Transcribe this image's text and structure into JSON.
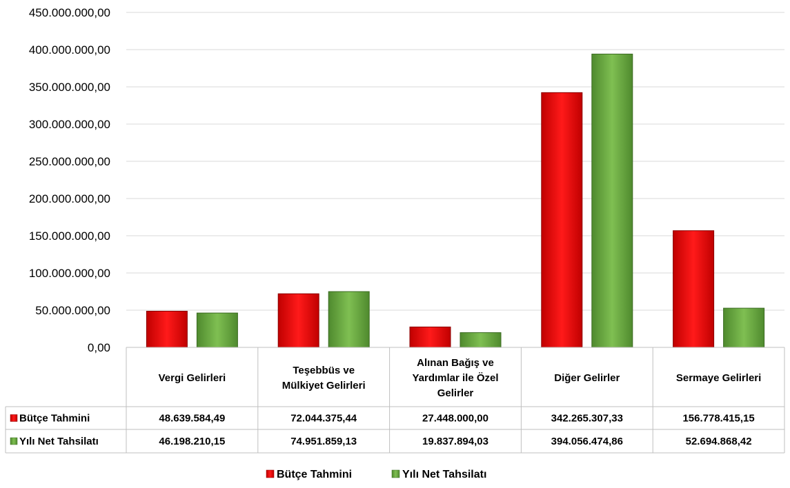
{
  "chart_data": {
    "type": "bar",
    "categories": [
      [
        "Vergi Gelirleri"
      ],
      [
        "Teşebbüs ve",
        "Mülkiyet Gelirleri"
      ],
      [
        "Alınan Bağış ve",
        "Yardımlar ile Özel",
        "Gelirler"
      ],
      [
        "Diğer Gelirler"
      ],
      [
        "Sermaye Gelirleri"
      ]
    ],
    "series": [
      {
        "name": "Bütçe Tahmini",
        "color": "#ff0000",
        "values": [
          48639584.49,
          72044375.44,
          27448000.0,
          342265307.33,
          156778415.15
        ],
        "labels": [
          "48.639.584,49",
          "72.044.375,44",
          "27.448.000,00",
          "342.265.307,33",
          "156.778.415,15"
        ]
      },
      {
        "name": "Yılı Net Tahsilatı",
        "color": "#70ad47",
        "values": [
          46198210.15,
          74951859.13,
          19837894.03,
          394056474.86,
          52694868.42
        ],
        "labels": [
          "46.198.210,15",
          "74.951.859,13",
          "19.837.894,03",
          "394.056.474,86",
          "52.694.868,42"
        ]
      }
    ],
    "yticks": [
      "0,00",
      "50.000.000,00",
      "100.000.000,00",
      "150.000.000,00",
      "200.000.000,00",
      "250.000.000,00",
      "300.000.000,00",
      "350.000.000,00",
      "400.000.000,00",
      "450.000.000,00"
    ],
    "ylim": [
      0,
      450000000
    ],
    "grid": true,
    "data_table": true,
    "legend_position": "bottom"
  }
}
